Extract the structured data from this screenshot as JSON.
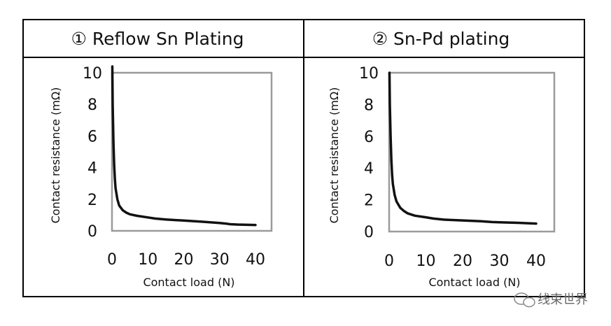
{
  "chart_data": [
    {
      "type": "line",
      "title": "① Reflow Sn Plating",
      "xlabel": "Contact load (N)",
      "ylabel": "Contact resistance (mΩ)",
      "xlim": [
        0,
        45
      ],
      "ylim": [
        0,
        10
      ],
      "xticks": [
        "0",
        "10",
        "20",
        "30",
        "40"
      ],
      "yticks": [
        "0",
        "2",
        "4",
        "6",
        "8",
        "10"
      ],
      "series": [
        {
          "name": "Reflow Sn",
          "x": [
            0.1,
            0.2,
            0.4,
            0.6,
            0.8,
            1,
            1.5,
            2,
            3,
            4,
            5,
            7,
            10,
            12,
            15,
            20,
            25,
            30,
            32,
            33,
            35,
            38,
            40
          ],
          "y": [
            10.4,
            8.0,
            5.6,
            4.2,
            3.3,
            2.7,
            2.0,
            1.6,
            1.3,
            1.15,
            1.05,
            0.95,
            0.85,
            0.78,
            0.72,
            0.65,
            0.58,
            0.5,
            0.45,
            0.42,
            0.4,
            0.38,
            0.37
          ]
        }
      ]
    },
    {
      "type": "line",
      "title": "② Sn-Pd plating",
      "xlabel": "Contact load (N)",
      "ylabel": "Contact resistance (mΩ)",
      "xlim": [
        0,
        45
      ],
      "ylim": [
        0,
        10
      ],
      "xticks": [
        "0",
        "10",
        "20",
        "30",
        "40"
      ],
      "yticks": [
        "0",
        "2",
        "4",
        "6",
        "8",
        "10"
      ],
      "series": [
        {
          "name": "Sn-Pd",
          "x": [
            0.1,
            0.2,
            0.4,
            0.6,
            0.8,
            1,
            1.5,
            2,
            3,
            4,
            5,
            7,
            10,
            12,
            15,
            20,
            25,
            28,
            30,
            35,
            40
          ],
          "y": [
            10.0,
            8.0,
            6.0,
            4.6,
            3.6,
            3.0,
            2.3,
            1.9,
            1.5,
            1.3,
            1.15,
            1.0,
            0.9,
            0.82,
            0.75,
            0.7,
            0.65,
            0.6,
            0.58,
            0.55,
            0.5
          ]
        }
      ]
    }
  ],
  "watermark": "线束世界"
}
